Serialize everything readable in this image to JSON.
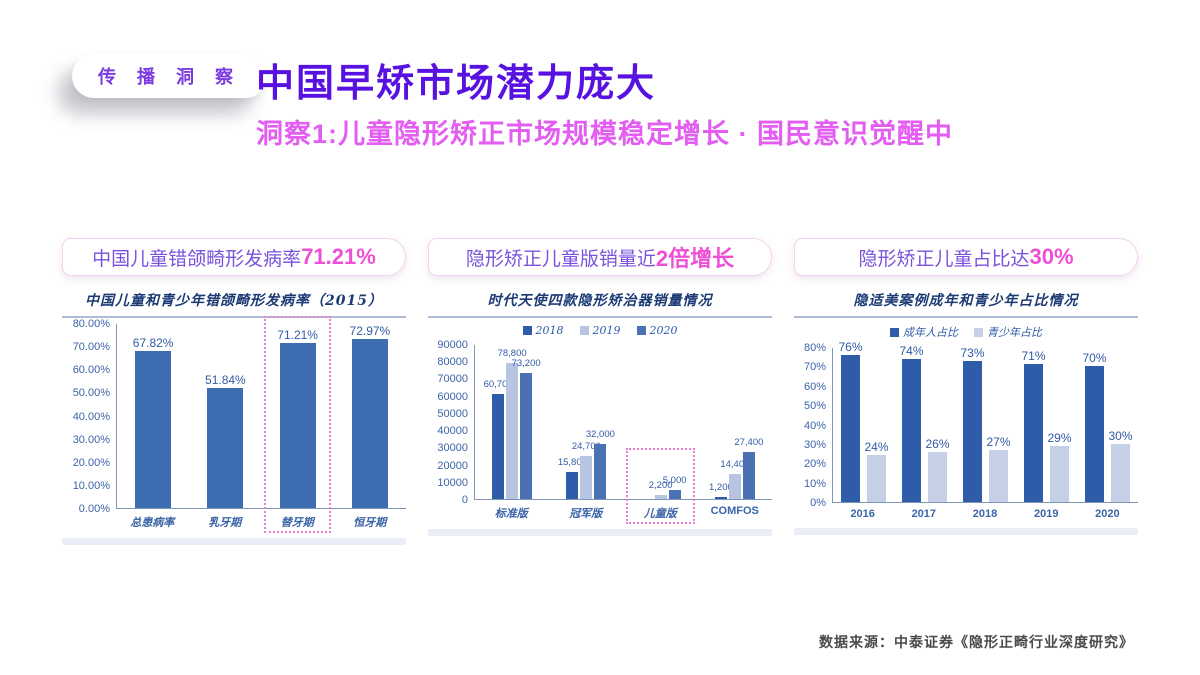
{
  "badge": {
    "label": "传 播 洞 察"
  },
  "header": {
    "title": "中国早矫市场潜力庞大",
    "subtitle": "洞察1:儿童隐形矫正市场规模稳定增长 · 国民意识觉醒中"
  },
  "cards": [
    {
      "headline_normal": "中国儿童错颌畸形发病率",
      "headline_accent": "71.21%"
    },
    {
      "headline_normal": "隐形矫正儿童版销量近",
      "headline_accent": "2倍增长"
    },
    {
      "headline_normal": "隐形矫正儿童占比达",
      "headline_accent": "30%"
    }
  ],
  "footer": {
    "source": "数据来源：中泰证券《隐形正畸行业深度研究》"
  },
  "colors": {
    "title_purple": "#5712e2",
    "subtitle_magenta": "#e35df2",
    "pill_accent_pink": "#ee4fd6",
    "bar_dark_blue": "#2e5ca8",
    "bar_mid_blue": "#4a72b2",
    "bar_light_blue": "#b7c5e2",
    "bar_steel_blue": "#3d6cb0",
    "highlight_pink": "#e87fd0"
  },
  "chart_data": [
    {
      "type": "bar",
      "title": "中国儿童和青少年错颌畸形发病率（2015）",
      "categories": [
        "总患病率",
        "乳牙期",
        "替牙期",
        "恒牙期"
      ],
      "series": [
        {
          "name": "发病率",
          "color": "#3d6cb0",
          "values": [
            67.82,
            51.84,
            71.21,
            72.97
          ],
          "labels": [
            "67.82%",
            "51.84%",
            "71.21%",
            "72.97%"
          ]
        }
      ],
      "ylim": [
        0,
        80
      ],
      "yticks": [
        "80.00%",
        "70.00%",
        "60.00%",
        "50.00%",
        "40.00%",
        "30.00%",
        "20.00%",
        "10.00%",
        "0.00%"
      ],
      "legend": false,
      "grid": false,
      "highlight": {
        "category_index": 2
      }
    },
    {
      "type": "bar",
      "title": "时代天使四款隐形矫治器销量情况",
      "categories": [
        "标准版",
        "冠军版",
        "儿童版",
        "COMFOS"
      ],
      "series": [
        {
          "name": "2018",
          "color": "#2e5ca8",
          "values": [
            60700,
            15800,
            0,
            1200
          ],
          "labels": [
            "60,700",
            "15,800",
            "",
            "1,200"
          ]
        },
        {
          "name": "2019",
          "color": "#b7c5e2",
          "values": [
            78800,
            24700,
            2200,
            14400
          ],
          "labels": [
            "78,800",
            "24,700",
            "2,200",
            "14,400"
          ]
        },
        {
          "name": "2020",
          "color": "#4a72b2",
          "values": [
            73200,
            32000,
            5000,
            27400
          ],
          "labels": [
            "73,200",
            "32,000",
            "5,000",
            "27,400"
          ]
        }
      ],
      "ylim": [
        0,
        90000
      ],
      "yticks": [
        "90000",
        "80000",
        "70000",
        "60000",
        "50000",
        "40000",
        "30000",
        "20000",
        "10000",
        "0"
      ],
      "legend": true,
      "grid": false,
      "highlight": {
        "category_index": 2
      }
    },
    {
      "type": "bar",
      "title": "隐适美案例成年和青少年占比情况",
      "categories": [
        "2016",
        "2017",
        "2018",
        "2019",
        "2020"
      ],
      "series": [
        {
          "name": "成年人占比",
          "color": "#2e5ca8",
          "values": [
            76,
            74,
            73,
            71,
            70
          ],
          "labels": [
            "76%",
            "74%",
            "73%",
            "71%",
            "70%"
          ]
        },
        {
          "name": "青少年占比",
          "color": "#c5cfe6",
          "values": [
            24,
            26,
            27,
            29,
            30
          ],
          "labels": [
            "24%",
            "26%",
            "27%",
            "29%",
            "30%"
          ]
        }
      ],
      "ylim": [
        0,
        80
      ],
      "yticks": [
        "80%",
        "70%",
        "60%",
        "50%",
        "40%",
        "30%",
        "20%",
        "10%",
        "0%"
      ],
      "legend": true,
      "grid": false
    }
  ]
}
